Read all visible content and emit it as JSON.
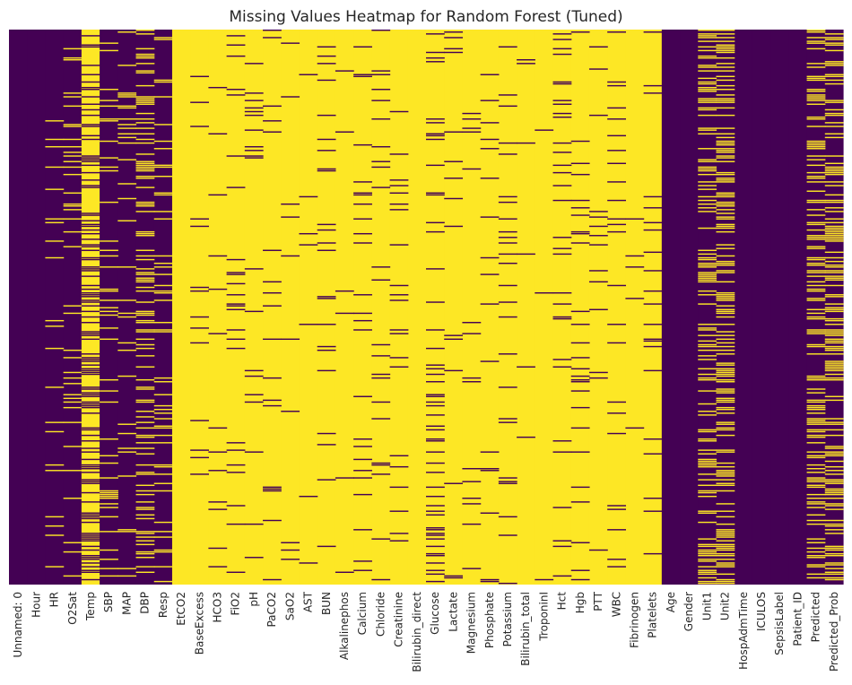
{
  "chart_data": {
    "type": "heatmap",
    "title": "Missing Values Heatmap for Random Forest (Tuned)",
    "xlabel": "",
    "ylabel": "",
    "colormap": "viridis",
    "colorbar": false,
    "value_meaning": "1 = missing, 0 = present",
    "colors": {
      "present": "#440154",
      "missing": "#fde725"
    },
    "grid": false,
    "columns": [
      {
        "name": "Unnamed: 0",
        "missing_fraction": 0.0
      },
      {
        "name": "Hour",
        "missing_fraction": 0.0
      },
      {
        "name": "HR",
        "missing_fraction": 0.1
      },
      {
        "name": "O2Sat",
        "missing_fraction": 0.12
      },
      {
        "name": "Temp",
        "missing_fraction": 0.65
      },
      {
        "name": "SBP",
        "missing_fraction": 0.14
      },
      {
        "name": "MAP",
        "missing_fraction": 0.1
      },
      {
        "name": "DBP",
        "missing_fraction": 0.3
      },
      {
        "name": "Resp",
        "missing_fraction": 0.15
      },
      {
        "name": "EtCO2",
        "missing_fraction": 1.0
      },
      {
        "name": "BaseExcess",
        "missing_fraction": 0.95
      },
      {
        "name": "HCO3",
        "missing_fraction": 0.93
      },
      {
        "name": "FiO2",
        "missing_fraction": 0.92
      },
      {
        "name": "pH",
        "missing_fraction": 0.93
      },
      {
        "name": "PaCO2",
        "missing_fraction": 0.94
      },
      {
        "name": "SaO2",
        "missing_fraction": 0.96
      },
      {
        "name": "AST",
        "missing_fraction": 0.98
      },
      {
        "name": "BUN",
        "missing_fraction": 0.93
      },
      {
        "name": "Alkalinephos",
        "missing_fraction": 0.98
      },
      {
        "name": "Calcium",
        "missing_fraction": 0.94
      },
      {
        "name": "Chloride",
        "missing_fraction": 0.95
      },
      {
        "name": "Creatinine",
        "missing_fraction": 0.94
      },
      {
        "name": "Bilirubin_direct",
        "missing_fraction": 1.0
      },
      {
        "name": "Glucose",
        "missing_fraction": 0.83
      },
      {
        "name": "Lactate",
        "missing_fraction": 0.97
      },
      {
        "name": "Magnesium",
        "missing_fraction": 0.94
      },
      {
        "name": "Phosphate",
        "missing_fraction": 0.96
      },
      {
        "name": "Potassium",
        "missing_fraction": 0.91
      },
      {
        "name": "Bilirubin_total",
        "missing_fraction": 0.98
      },
      {
        "name": "TroponinI",
        "missing_fraction": 0.99
      },
      {
        "name": "Hct",
        "missing_fraction": 0.91
      },
      {
        "name": "Hgb",
        "missing_fraction": 0.93
      },
      {
        "name": "PTT",
        "missing_fraction": 0.97
      },
      {
        "name": "WBC",
        "missing_fraction": 0.94
      },
      {
        "name": "Fibrinogen",
        "missing_fraction": 0.99
      },
      {
        "name": "Platelets",
        "missing_fraction": 0.94
      },
      {
        "name": "Age",
        "missing_fraction": 0.0
      },
      {
        "name": "Gender",
        "missing_fraction": 0.0
      },
      {
        "name": "Unit1",
        "missing_fraction": 0.4
      },
      {
        "name": "Unit2",
        "missing_fraction": 0.4
      },
      {
        "name": "HospAdmTime",
        "missing_fraction": 0.0
      },
      {
        "name": "ICULOS",
        "missing_fraction": 0.0
      },
      {
        "name": "SepsisLabel",
        "missing_fraction": 0.0
      },
      {
        "name": "Patient_ID",
        "missing_fraction": 0.0
      },
      {
        "name": "Predicted",
        "missing_fraction": 0.4
      },
      {
        "name": "Predicted_Prob",
        "missing_fraction": 0.4
      }
    ]
  }
}
